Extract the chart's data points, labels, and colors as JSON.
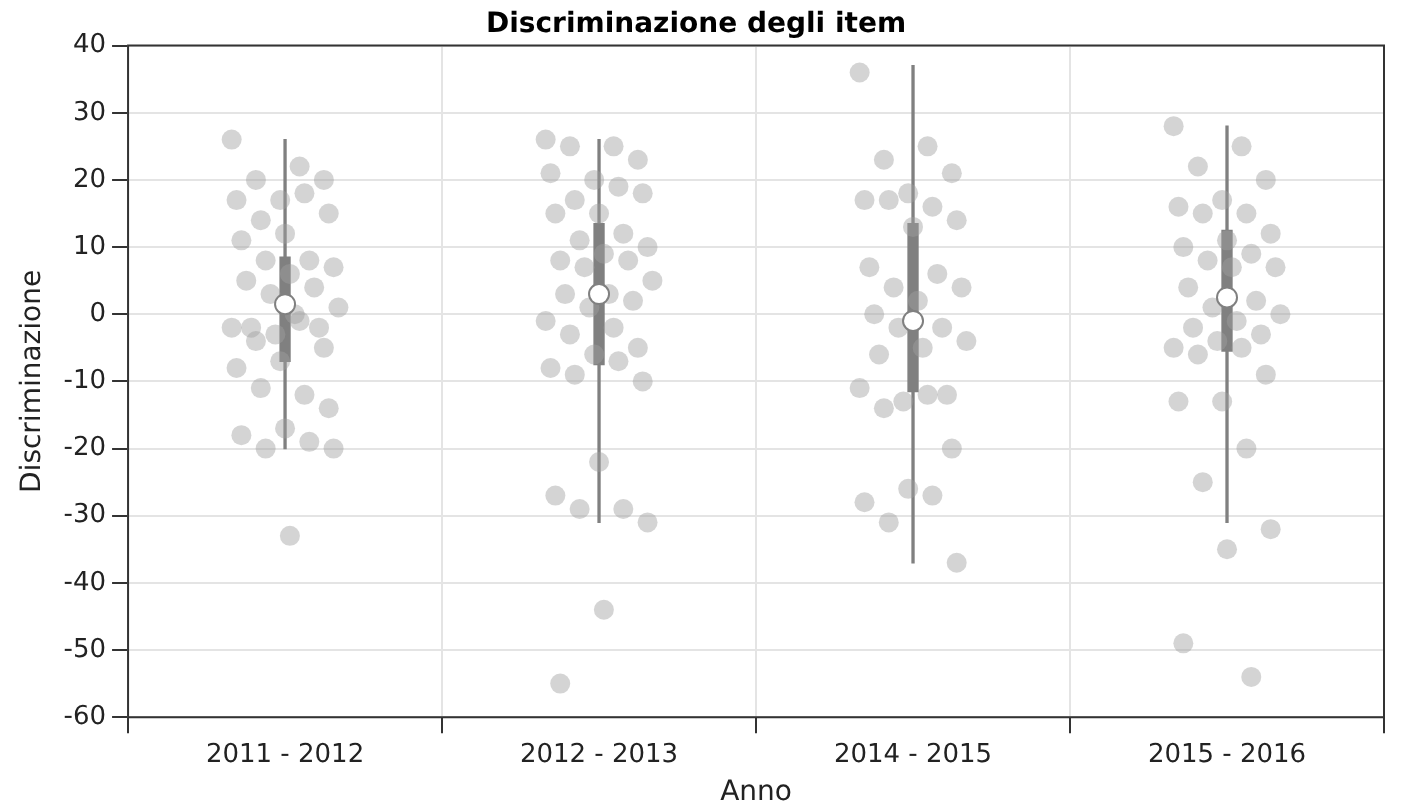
{
  "chart_data": {
    "type": "box",
    "title": "Discriminazione degli item",
    "xlabel": "Anno",
    "ylabel": "Discriminazione",
    "categories": [
      "2011 - 2012",
      "2012 - 2013",
      "2014 - 2015",
      "2015 - 2016"
    ],
    "boxes": [
      {
        "low": -20,
        "q1": -7,
        "median": 1.5,
        "q3": 8.5,
        "high": 26
      },
      {
        "low": -31,
        "q1": -7.5,
        "median": 3,
        "q3": 13.5,
        "high": 26
      },
      {
        "low": -37,
        "q1": -11.5,
        "median": -1,
        "q3": 13.5,
        "high": 37
      },
      {
        "low": -31,
        "q1": -5.5,
        "median": 2.5,
        "q3": 12.5,
        "high": 28
      }
    ],
    "color": "#808080",
    "series": [
      {
        "type": "scatter",
        "color": "#a0a0a0",
        "x": [
          "2011 - 2012",
          "2011 - 2012",
          "2011 - 2012",
          "2011 - 2012",
          "2011 - 2012",
          "2011 - 2012",
          "2011 - 2012",
          "2011 - 2012",
          "2011 - 2012",
          "2011 - 2012",
          "2011 - 2012",
          "2011 - 2012",
          "2011 - 2012",
          "2011 - 2012",
          "2011 - 2012",
          "2011 - 2012",
          "2011 - 2012",
          "2011 - 2012",
          "2011 - 2012",
          "2011 - 2012",
          "2011 - 2012",
          "2011 - 2012",
          "2011 - 2012",
          "2011 - 2012",
          "2011 - 2012",
          "2011 - 2012",
          "2011 - 2012",
          "2011 - 2012",
          "2011 - 2012",
          "2011 - 2012",
          "2011 - 2012",
          "2011 - 2012",
          "2011 - 2012",
          "2011 - 2012",
          "2011 - 2012",
          "2011 - 2012",
          "2011 - 2012",
          "2011 - 2012"
        ],
        "values": [
          26,
          22,
          20,
          20,
          17,
          17,
          18,
          14,
          15,
          12,
          11,
          8,
          8,
          7,
          6,
          5,
          4,
          3,
          1,
          0,
          -2,
          -2,
          -3,
          -2,
          -1,
          -4,
          -5,
          -7,
          -8,
          -12,
          -11,
          -14,
          -17,
          -18,
          -19,
          -20,
          -20,
          -33
        ]
      },
      {
        "type": "scatter",
        "color": "#a0a0a0",
        "x": [
          "2012 - 2013",
          "2012 - 2013",
          "2012 - 2013",
          "2012 - 2013",
          "2012 - 2013",
          "2012 - 2013",
          "2012 - 2013",
          "2012 - 2013",
          "2012 - 2013",
          "2012 - 2013",
          "2012 - 2013",
          "2012 - 2013",
          "2012 - 2013",
          "2012 - 2013",
          "2012 - 2013",
          "2012 - 2013",
          "2012 - 2013",
          "2012 - 2013",
          "2012 - 2013",
          "2012 - 2013",
          "2012 - 2013",
          "2012 - 2013",
          "2012 - 2013",
          "2012 - 2013",
          "2012 - 2013",
          "2012 - 2013",
          "2012 - 2013",
          "2012 - 2013",
          "2012 - 2013",
          "2012 - 2013",
          "2012 - 2013",
          "2012 - 2013",
          "2012 - 2013",
          "2012 - 2013",
          "2012 - 2013",
          "2012 - 2013",
          "2012 - 2013",
          "2012 - 2013",
          "2012 - 2013"
        ],
        "values": [
          26,
          25,
          25,
          23,
          20,
          21,
          19,
          17,
          18,
          15,
          15,
          12,
          11,
          10,
          9,
          8,
          8,
          7,
          5,
          3,
          3,
          2,
          1,
          -1,
          -2,
          -3,
          -5,
          -6,
          -8,
          -7,
          -9,
          -10,
          -22,
          -27,
          -29,
          -29,
          -31,
          -44,
          -55
        ]
      },
      {
        "type": "scatter",
        "color": "#a0a0a0",
        "x": [
          "2014 - 2015",
          "2014 - 2015",
          "2014 - 2015",
          "2014 - 2015",
          "2014 - 2015",
          "2014 - 2015",
          "2014 - 2015",
          "2014 - 2015",
          "2014 - 2015",
          "2014 - 2015",
          "2014 - 2015",
          "2014 - 2015",
          "2014 - 2015",
          "2014 - 2015",
          "2014 - 2015",
          "2014 - 2015",
          "2014 - 2015",
          "2014 - 2015",
          "2014 - 2015",
          "2014 - 2015",
          "2014 - 2015",
          "2014 - 2015",
          "2014 - 2015",
          "2014 - 2015",
          "2014 - 2015",
          "2014 - 2015",
          "2014 - 2015",
          "2014 - 2015",
          "2014 - 2015",
          "2014 - 2015",
          "2014 - 2015",
          "2014 - 2015"
        ],
        "values": [
          36,
          25,
          23,
          21,
          18,
          17,
          16,
          17,
          14,
          13,
          7,
          6,
          4,
          4,
          2,
          0,
          -2,
          -2,
          -4,
          -5,
          -6,
          -12,
          -13,
          -11,
          -12,
          -14,
          -20,
          -26,
          -28,
          -27,
          -31,
          -37
        ]
      },
      {
        "type": "scatter",
        "color": "#a0a0a0",
        "x": [
          "2015 - 2016",
          "2015 - 2016",
          "2015 - 2016",
          "2015 - 2016",
          "2015 - 2016",
          "2015 - 2016",
          "2015 - 2016",
          "2015 - 2016",
          "2015 - 2016",
          "2015 - 2016",
          "2015 - 2016",
          "2015 - 2016",
          "2015 - 2016",
          "2015 - 2016",
          "2015 - 2016",
          "2015 - 2016",
          "2015 - 2016",
          "2015 - 2016",
          "2015 - 2016",
          "2015 - 2016",
          "2015 - 2016",
          "2015 - 2016",
          "2015 - 2016",
          "2015 - 2016",
          "2015 - 2016",
          "2015 - 2016",
          "2015 - 2016",
          "2015 - 2016",
          "2015 - 2016",
          "2015 - 2016",
          "2015 - 2016",
          "2015 - 2016",
          "2015 - 2016",
          "2015 - 2016",
          "2015 - 2016"
        ],
        "values": [
          28,
          25,
          22,
          20,
          17,
          16,
          15,
          15,
          12,
          11,
          10,
          9,
          8,
          7,
          7,
          4,
          2,
          1,
          0,
          -1,
          -2,
          -3,
          -4,
          -5,
          -5,
          -6,
          -9,
          -13,
          -13,
          -20,
          -25,
          -32,
          -35,
          -49,
          -54
        ]
      }
    ],
    "marker": "circle",
    "ylim": [
      -60,
      40
    ],
    "yticks": [
      -60,
      -50,
      -40,
      -30,
      -20,
      -10,
      0,
      10,
      20,
      30,
      40
    ],
    "grid": true,
    "legend": false
  }
}
